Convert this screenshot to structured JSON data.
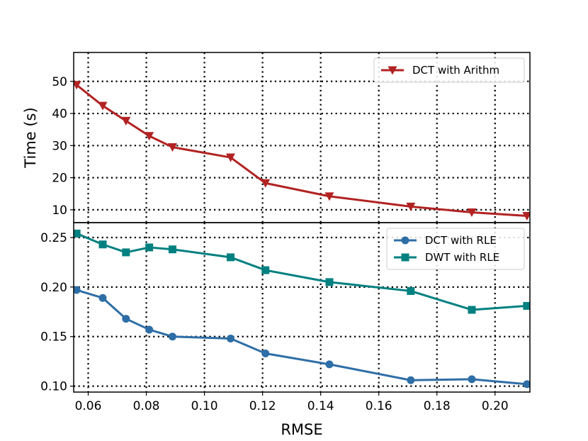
{
  "chart_data": {
    "type": "line",
    "xlabel": "RMSE",
    "xlim": [
      0.055,
      0.212
    ],
    "xticks": [
      0.06,
      0.08,
      0.1,
      0.12,
      0.14,
      0.16,
      0.18,
      0.2
    ],
    "xtick_labels": [
      "0.06",
      "0.08",
      "0.10",
      "0.12",
      "0.14",
      "0.16",
      "0.18",
      "0.20"
    ],
    "grid": true,
    "panels": [
      {
        "ylabel": "Time (s)",
        "ylim": [
          6,
          59
        ],
        "yticks": [
          10,
          20,
          30,
          40,
          50
        ],
        "ytick_labels": [
          "10",
          "20",
          "30",
          "40",
          "50"
        ],
        "legend_position": "top-right",
        "series": [
          {
            "name": "DCT with Arithm",
            "color": "#b22222",
            "marker": "triangle-down",
            "x": [
              0.056,
              0.065,
              0.073,
              0.081,
              0.089,
              0.109,
              0.121,
              0.143,
              0.171,
              0.192,
              0.211
            ],
            "y": [
              48.9,
              42.4,
              37.7,
              33.0,
              29.5,
              26.3,
              18.3,
              14.2,
              11.0,
              9.2,
              8.1
            ]
          }
        ]
      },
      {
        "ylabel": "",
        "ylim": [
          0.094,
          0.265
        ],
        "yticks": [
          0.1,
          0.15,
          0.2,
          0.25
        ],
        "ytick_labels": [
          "0.10",
          "0.15",
          "0.20",
          "0.25"
        ],
        "legend_position": "top-right",
        "series": [
          {
            "name": "DCT with RLE",
            "color": "#2e6ea6",
            "marker": "circle",
            "x": [
              0.056,
              0.065,
              0.073,
              0.081,
              0.089,
              0.109,
              0.121,
              0.143,
              0.171,
              0.192,
              0.211
            ],
            "y": [
              0.197,
              0.189,
              0.168,
              0.157,
              0.15,
              0.148,
              0.133,
              0.122,
              0.106,
              0.107,
              0.102
            ]
          },
          {
            "name": "DWT with RLE",
            "color": "#008080",
            "marker": "square",
            "x": [
              0.056,
              0.065,
              0.073,
              0.081,
              0.089,
              0.109,
              0.121,
              0.143,
              0.171,
              0.192,
              0.211
            ],
            "y": [
              0.254,
              0.243,
              0.235,
              0.24,
              0.238,
              0.23,
              0.217,
              0.205,
              0.196,
              0.177,
              0.181
            ]
          }
        ]
      }
    ]
  }
}
